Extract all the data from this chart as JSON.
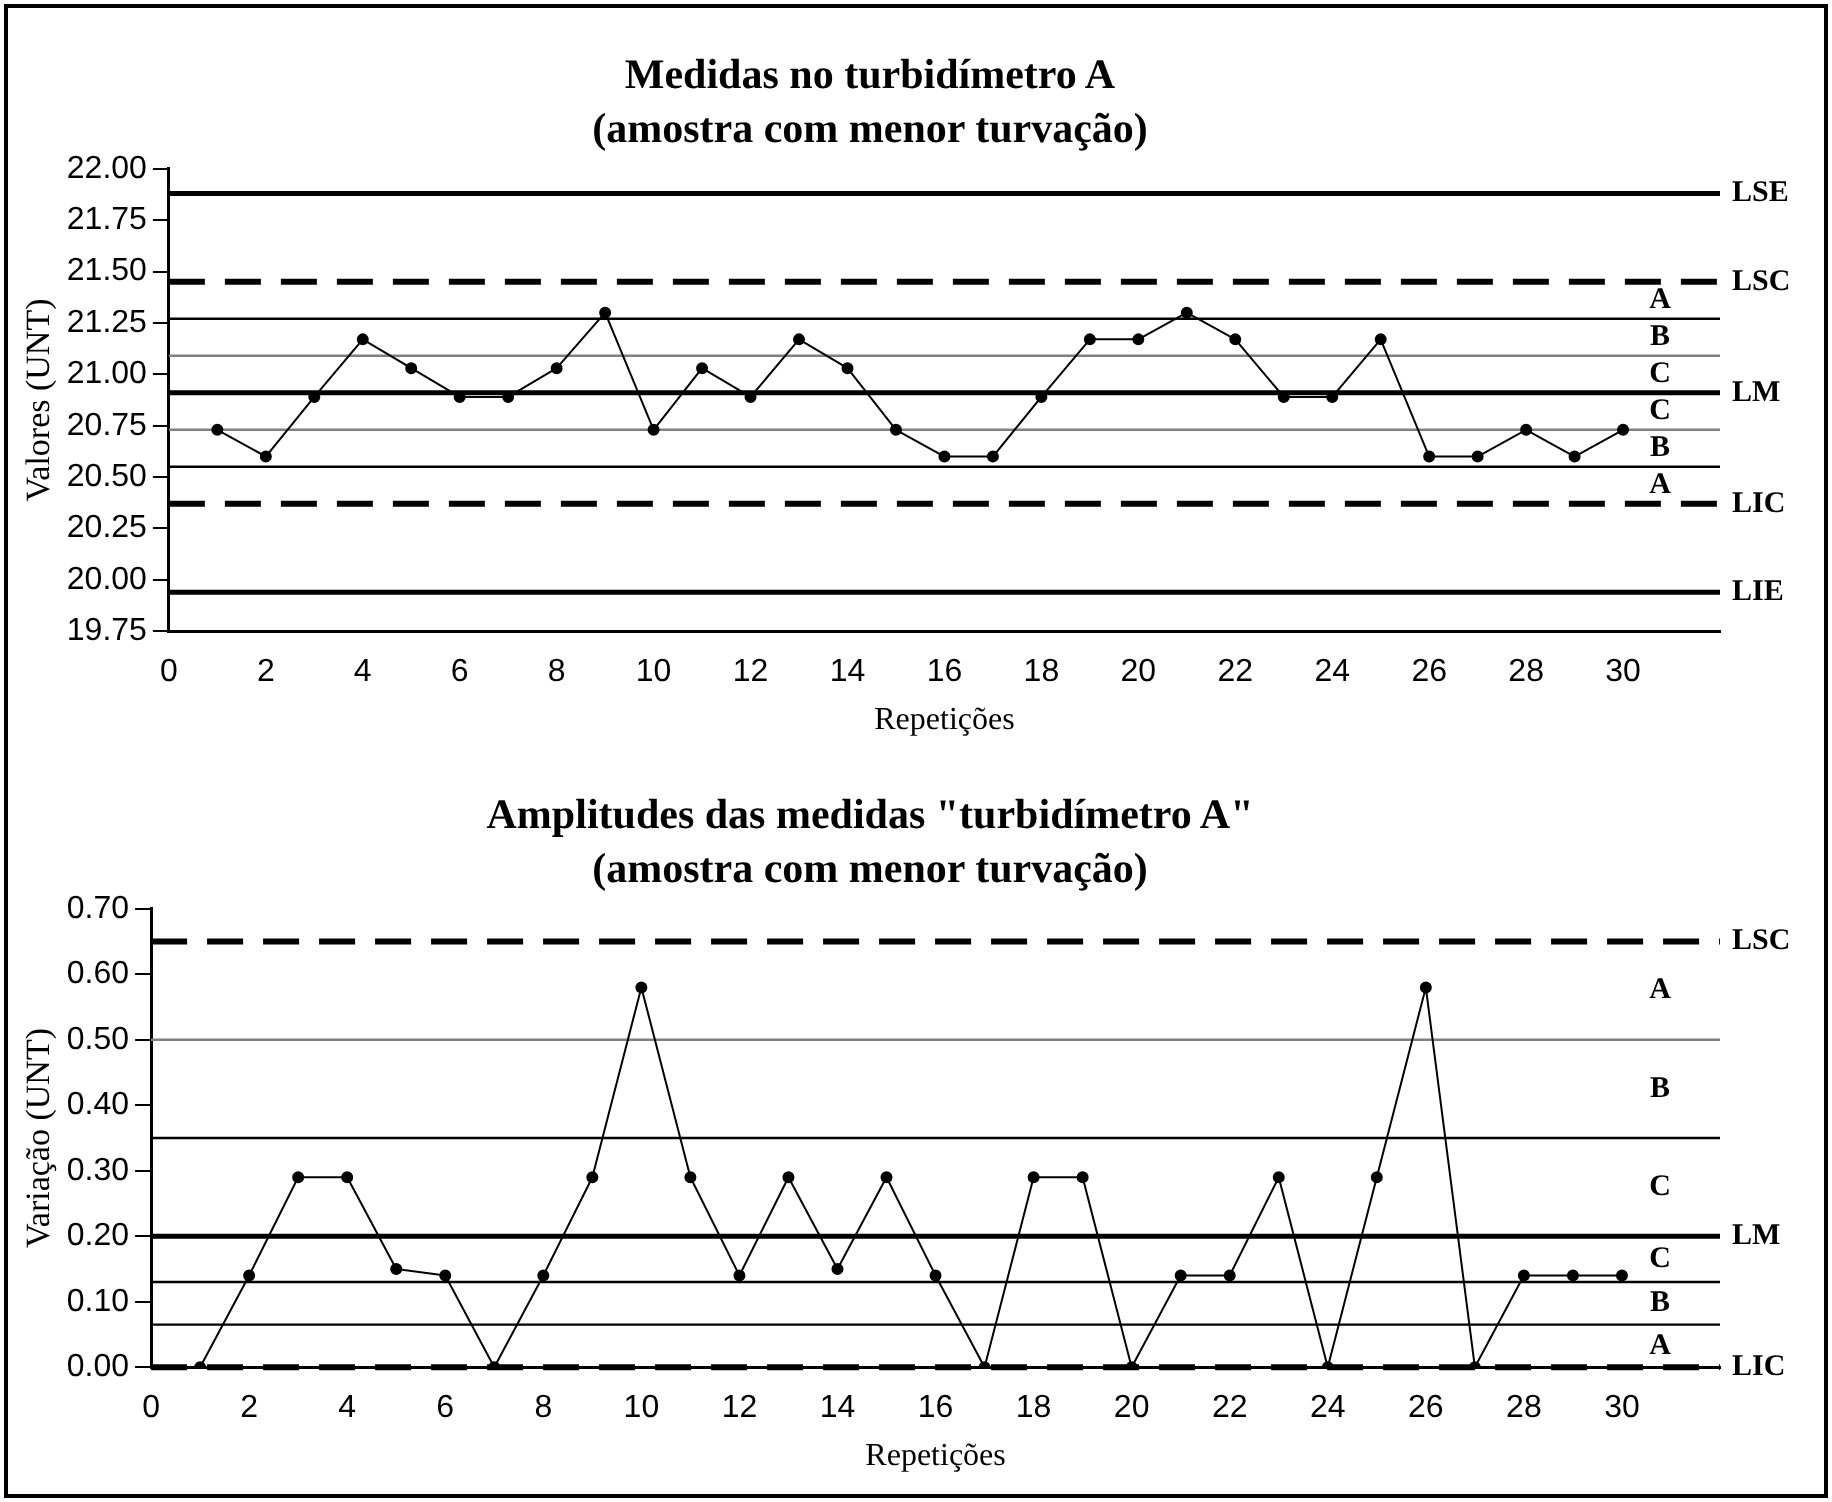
{
  "chart_data": [
    {
      "type": "line",
      "title": "Medidas no turbidímetro A",
      "subtitle": "(amostra com menor turvação)",
      "xlabel": "Repetições",
      "ylabel": "Valores (UNT)",
      "x": [
        1,
        2,
        3,
        4,
        5,
        6,
        7,
        8,
        9,
        10,
        11,
        12,
        13,
        14,
        15,
        16,
        17,
        18,
        19,
        20,
        21,
        22,
        23,
        24,
        25,
        26,
        27,
        28,
        29,
        30
      ],
      "series": [
        {
          "color": "#000000",
          "values": [
            20.73,
            20.6,
            20.89,
            21.17,
            21.03,
            20.89,
            20.89,
            21.03,
            21.3,
            20.73,
            21.03,
            20.89,
            21.17,
            21.03,
            20.73,
            20.6,
            20.6,
            20.89,
            21.17,
            21.17,
            21.3,
            21.17,
            20.89,
            20.89,
            21.17,
            20.6,
            20.6,
            20.73,
            20.6,
            20.73
          ]
        }
      ],
      "xlim": [
        0,
        32
      ],
      "xticks": [
        0,
        2,
        4,
        6,
        8,
        10,
        12,
        14,
        16,
        18,
        20,
        22,
        24,
        26,
        28,
        30
      ],
      "ylim": [
        19.75,
        22
      ],
      "yticks": [
        {
          "value": 19.75,
          "label": "19.75"
        },
        {
          "value": 20,
          "label": "20.00"
        },
        {
          "value": 20.25,
          "label": "20.25"
        },
        {
          "value": 20.5,
          "label": "20.50"
        },
        {
          "value": 20.75,
          "label": "20.75"
        },
        {
          "value": 21,
          "label": "21.00"
        },
        {
          "value": 21.25,
          "label": "21.25"
        },
        {
          "value": 21.5,
          "label": "21.50"
        },
        {
          "value": 21.75,
          "label": "21.75"
        },
        {
          "value": 22,
          "label": "22.00"
        }
      ],
      "ref_lines": [
        {
          "axis": "y",
          "value": 21.88,
          "label": "LSE",
          "color": "#000000",
          "line_style": "solid"
        },
        {
          "axis": "y",
          "value": 21.45,
          "label": "LSC",
          "color": "#000000",
          "line_style": "dashed"
        },
        {
          "axis": "y",
          "value": 21.27,
          "label": null,
          "color": "#000000",
          "line_style": "solid"
        },
        {
          "axis": "y",
          "value": 21.09,
          "label": null,
          "color": "#808080",
          "line_style": "solid"
        },
        {
          "axis": "y",
          "value": 20.91,
          "label": "LM",
          "color": "#000000",
          "line_style": "solid"
        },
        {
          "axis": "y",
          "value": 20.73,
          "label": null,
          "color": "#808080",
          "line_style": "solid"
        },
        {
          "axis": "y",
          "value": 20.55,
          "label": null,
          "color": "#000000",
          "line_style": "solid"
        },
        {
          "axis": "y",
          "value": 20.37,
          "label": "LIC",
          "color": "#000000",
          "line_style": "dashed"
        },
        {
          "axis": "y",
          "value": 19.94,
          "label": "LIE",
          "color": "#000000",
          "line_style": "solid"
        }
      ],
      "annotations": [
        "A",
        "B",
        "C",
        "C",
        "B",
        "A"
      ],
      "marker": "circle",
      "grid": false,
      "legend": false
    },
    {
      "type": "line",
      "title": "Amplitudes das medidas \"turbidímetro A\"",
      "subtitle": "(amostra com menor turvação)",
      "xlabel": "Repetições",
      "ylabel": "Variação (UNT)",
      "x": [
        1,
        2,
        3,
        4,
        5,
        6,
        7,
        8,
        9,
        10,
        11,
        12,
        13,
        14,
        15,
        16,
        17,
        18,
        19,
        20,
        21,
        22,
        23,
        24,
        25,
        26,
        27,
        28,
        29,
        30
      ],
      "series": [
        {
          "color": "#000000",
          "values": [
            0,
            0.14,
            0.29,
            0.29,
            0.15,
            0.14,
            0,
            0.14,
            0.29,
            0.58,
            0.29,
            0.14,
            0.29,
            0.15,
            0.29,
            0.14,
            0,
            0.29,
            0.29,
            0,
            0.14,
            0.14,
            0.29,
            0,
            0.29,
            0.58,
            0,
            0.14,
            0.14,
            0.14
          ]
        }
      ],
      "xlim": [
        0,
        32
      ],
      "xticks": [
        0,
        2,
        4,
        6,
        8,
        10,
        12,
        14,
        16,
        18,
        20,
        22,
        24,
        26,
        28,
        30
      ],
      "ylim": [
        0,
        0.7
      ],
      "yticks": [
        {
          "value": 0,
          "label": "0.00"
        },
        {
          "value": 0.1,
          "label": "0.10"
        },
        {
          "value": 0.2,
          "label": "0.20"
        },
        {
          "value": 0.3,
          "label": "0.30"
        },
        {
          "value": 0.4,
          "label": "0.40"
        },
        {
          "value": 0.5,
          "label": "0.50"
        },
        {
          "value": 0.6,
          "label": "0.60"
        },
        {
          "value": 0.7,
          "label": "0.70"
        }
      ],
      "ref_lines": [
        {
          "axis": "y",
          "value": 0.65,
          "label": "LSC",
          "color": "#000000",
          "line_style": "dashed"
        },
        {
          "axis": "y",
          "value": 0.5,
          "label": null,
          "color": "#808080",
          "line_style": "solid"
        },
        {
          "axis": "y",
          "value": 0.35,
          "label": null,
          "color": "#000000",
          "line_style": "solid"
        },
        {
          "axis": "y",
          "value": 0.2,
          "label": "LM",
          "color": "#000000",
          "line_style": "solid"
        },
        {
          "axis": "y",
          "value": 0.13,
          "label": null,
          "color": "#000000",
          "line_style": "solid"
        },
        {
          "axis": "y",
          "value": 0.065,
          "label": null,
          "color": "#000000",
          "line_style": "solid"
        },
        {
          "axis": "y",
          "value": 0,
          "label": "LIC",
          "color": "#000000",
          "line_style": "dashed"
        }
      ],
      "annotations": [
        "A",
        "B",
        "C",
        "C",
        "B",
        "A"
      ],
      "marker": "circle",
      "grid": false,
      "legend": false
    }
  ]
}
